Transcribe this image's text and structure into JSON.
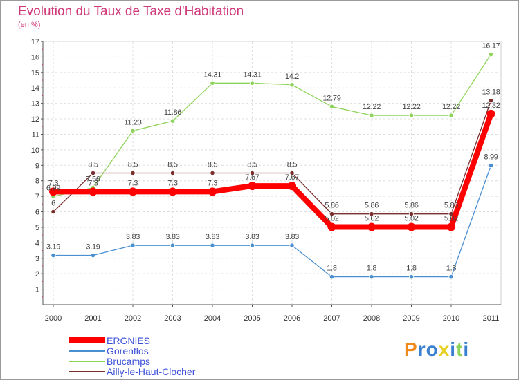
{
  "chart_data": {
    "type": "line",
    "title": "Evolution du Taux de Taxe d'Habitation",
    "unit_label": "(en %)",
    "x": [
      "2000",
      "2001",
      "2002",
      "2003",
      "2004",
      "2005",
      "2006",
      "2007",
      "2008",
      "2009",
      "2010",
      "2011"
    ],
    "ylim": [
      0,
      17
    ],
    "yticks": [
      "1",
      "2",
      "3",
      "4",
      "5",
      "6",
      "7",
      "8",
      "9",
      "10",
      "11",
      "12",
      "13",
      "14",
      "15",
      "16",
      "17"
    ],
    "grid": true,
    "legend_position": "bottom-left",
    "series": [
      {
        "name": "ERGNIES",
        "color": "#ff0000",
        "values": [
          7.3,
          7.3,
          7.3,
          7.3,
          7.3,
          7.67,
          7.67,
          5.02,
          5.02,
          5.02,
          5.02,
          12.32
        ],
        "labels": [
          "7.3",
          "7.3",
          "7.3",
          "7.3",
          "7.3",
          "7.67",
          "7.67",
          "5.02",
          "5.02",
          "5.02",
          "5.02",
          "12.32"
        ]
      },
      {
        "name": "Gorenflos",
        "color": "#4a8fd0",
        "values": [
          3.19,
          3.19,
          3.83,
          3.83,
          3.83,
          3.83,
          3.83,
          1.8,
          1.8,
          1.8,
          1.8,
          8.99
        ],
        "labels": [
          "3.19",
          "3.19",
          "3.83",
          "3.83",
          "3.83",
          "3.83",
          "3.83",
          "1.8",
          "1.8",
          "1.8",
          "1.8",
          "8.99"
        ]
      },
      {
        "name": "Brucamps",
        "color": "#8fd45a",
        "values": [
          6.99,
          7.56,
          11.23,
          11.86,
          14.31,
          14.31,
          14.2,
          12.79,
          12.22,
          12.22,
          12.22,
          16.17
        ],
        "labels": [
          "6.99",
          "7.56",
          "11.23",
          "11.86",
          "14.31",
          "14.31",
          "14.2",
          "12.79",
          "12.22",
          "12.22",
          "12.22",
          "16.17"
        ]
      },
      {
        "name": "Ailly-le-Haut-Clocher",
        "color": "#7a2e2e",
        "values": [
          6,
          8.5,
          8.5,
          8.5,
          8.5,
          8.5,
          8.5,
          5.86,
          5.86,
          5.86,
          5.86,
          13.18
        ],
        "labels": [
          "6",
          "8.5",
          "8.5",
          "8.5",
          "8.5",
          "8.5",
          "8.5",
          "5.86",
          "5.86",
          "5.86",
          "5.86",
          "13.18"
        ]
      }
    ]
  },
  "logo": {
    "text": "Proxiti",
    "colors": [
      "#f08a1c",
      "#3a7fd0",
      "#3a7fd0",
      "#e8d020",
      "#3a7fd0",
      "#8fd45a",
      "#3a7fd0"
    ]
  }
}
